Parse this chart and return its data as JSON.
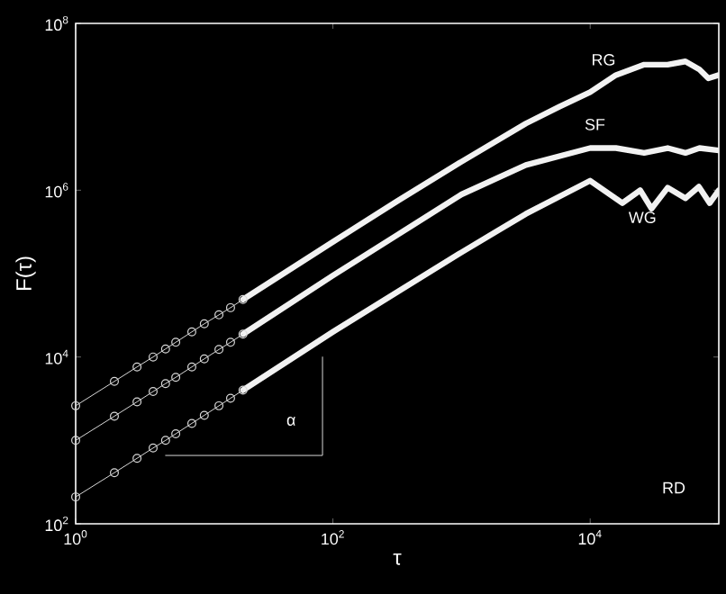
{
  "chart_data": {
    "type": "line",
    "xlabel": "τ",
    "ylabel": "F(τ)",
    "log": "xy",
    "xlim": [
      1,
      100000
    ],
    "ylim": [
      100,
      100000000
    ],
    "xticks": [
      {
        "value": 1,
        "label": "10$^{0}$"
      },
      {
        "value": 100,
        "label": "10$^{2}$"
      },
      {
        "value": 10000,
        "label": "10$^{4}$"
      }
    ],
    "yticks": [
      {
        "value": 100,
        "label": "10$^{2}$"
      },
      {
        "value": 10000,
        "label": "10$^{4}$"
      },
      {
        "value": 1000000,
        "label": "10$^{6}$"
      },
      {
        "value": 100000000,
        "label": "10$^{8}$"
      }
    ],
    "grid": false,
    "series": [
      {
        "name": "RG",
        "color": "#f2f2f2",
        "x": [
          20,
          100,
          316,
          1000,
          3162,
          5750,
          10000,
          15850,
          26300,
          40000,
          55000,
          70800,
          83000,
          100000
        ],
        "values": [
          49000,
          240000,
          740000,
          2200000,
          6300000,
          10000000,
          15000000,
          24000000,
          32000000,
          32000000,
          35000000,
          28000000,
          22000000,
          24000000
        ]
      },
      {
        "name": "SF",
        "color": "#f2f2f2",
        "x": [
          20,
          100,
          316,
          1000,
          3162,
          10000,
          15850,
          26300,
          40000,
          55000,
          70800,
          100000
        ],
        "values": [
          18800,
          95000,
          290000,
          890000,
          2000000,
          3200000,
          3200000,
          2800000,
          3200000,
          2800000,
          3200000,
          3000000
        ]
      },
      {
        "name": "WG",
        "color": "#f2f2f2",
        "x": [
          20,
          100,
          316,
          1000,
          3162,
          10000,
          17800,
          24500,
          30000,
          40000,
          55000,
          70000,
          85000,
          100000
        ],
        "values": [
          4000,
          20000,
          60000,
          180000,
          520000,
          1300000,
          700000,
          1000000,
          600000,
          1070000,
          800000,
          1100000,
          700000,
          1000000
        ]
      },
      {
        "color": "#d9d9d9",
        "marker": "circle",
        "x": [
          1,
          2,
          3,
          4,
          5,
          6,
          8,
          10,
          13,
          16,
          20
        ],
        "values": [
          2600,
          5100,
          7600,
          10000,
          12500,
          15000,
          20000,
          25000,
          32000,
          39000,
          49000
        ]
      },
      {
        "color": "#d9d9d9",
        "marker": "circle",
        "x": [
          1,
          2,
          3,
          4,
          5,
          6,
          8,
          10,
          13,
          16,
          20
        ],
        "values": [
          1000,
          1950,
          2900,
          3850,
          4800,
          5700,
          7600,
          9500,
          12300,
          15000,
          18800
        ]
      },
      {
        "color": "#d9d9d9",
        "marker": "circle",
        "x": [
          1,
          2,
          3,
          4,
          5,
          6,
          8,
          10,
          13,
          16,
          20
        ],
        "values": [
          210,
          410,
          610,
          810,
          1000,
          1200,
          1600,
          2000,
          2600,
          3200,
          4000
        ]
      },
      {
        "color": "#d9d9d9",
        "marker": "none",
        "x": [
          5,
          83,
          83
        ],
        "values": [
          660,
          660,
          10000
        ]
      }
    ],
    "annotations": [
      "α",
      "RD"
    ]
  }
}
